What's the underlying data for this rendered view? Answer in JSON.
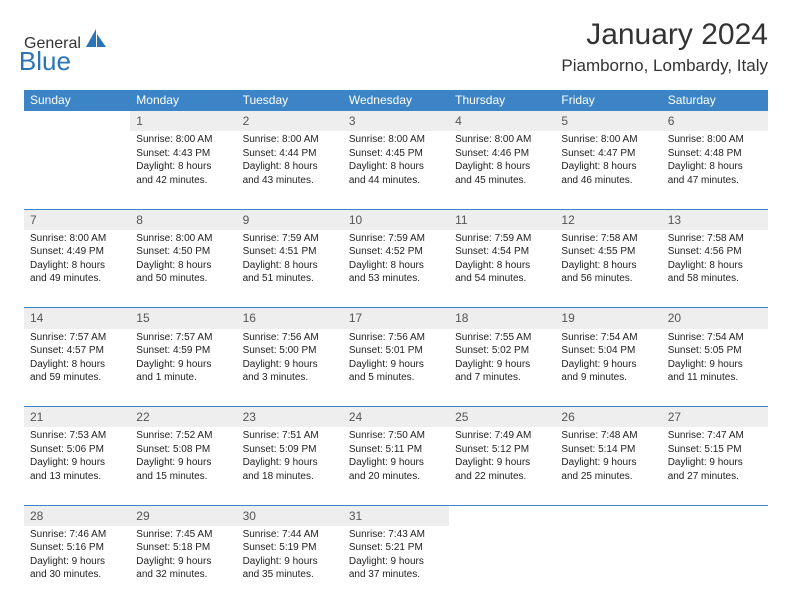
{
  "logo": {
    "general": "General",
    "blue": "Blue"
  },
  "title": "January 2024",
  "location": "Piamborno, Lombardy, Italy",
  "colors": {
    "header_bg": "#3c84c6",
    "header_text": "#ffffff",
    "daynum_bg": "#eeeeee",
    "row_border": "#3c84c6",
    "logo_gray": "#595959",
    "logo_blue": "#2b74b8",
    "page_bg": "#ffffff",
    "body_text": "#333333"
  },
  "fonts": {
    "title_pt": 30,
    "location_pt": 17,
    "th_pt": 12,
    "daynum_pt": 12,
    "cell_pt": 10
  },
  "weekdays": [
    "Sunday",
    "Monday",
    "Tuesday",
    "Wednesday",
    "Thursday",
    "Friday",
    "Saturday"
  ],
  "grid": {
    "rows": 6,
    "cols": 7,
    "first_weekday_index": 1,
    "days_in_month": 31
  },
  "days": {
    "1": {
      "sunrise": "8:00 AM",
      "sunset": "4:43 PM",
      "daylight": "8 hours and 42 minutes."
    },
    "2": {
      "sunrise": "8:00 AM",
      "sunset": "4:44 PM",
      "daylight": "8 hours and 43 minutes."
    },
    "3": {
      "sunrise": "8:00 AM",
      "sunset": "4:45 PM",
      "daylight": "8 hours and 44 minutes."
    },
    "4": {
      "sunrise": "8:00 AM",
      "sunset": "4:46 PM",
      "daylight": "8 hours and 45 minutes."
    },
    "5": {
      "sunrise": "8:00 AM",
      "sunset": "4:47 PM",
      "daylight": "8 hours and 46 minutes."
    },
    "6": {
      "sunrise": "8:00 AM",
      "sunset": "4:48 PM",
      "daylight": "8 hours and 47 minutes."
    },
    "7": {
      "sunrise": "8:00 AM",
      "sunset": "4:49 PM",
      "daylight": "8 hours and 49 minutes."
    },
    "8": {
      "sunrise": "8:00 AM",
      "sunset": "4:50 PM",
      "daylight": "8 hours and 50 minutes."
    },
    "9": {
      "sunrise": "7:59 AM",
      "sunset": "4:51 PM",
      "daylight": "8 hours and 51 minutes."
    },
    "10": {
      "sunrise": "7:59 AM",
      "sunset": "4:52 PM",
      "daylight": "8 hours and 53 minutes."
    },
    "11": {
      "sunrise": "7:59 AM",
      "sunset": "4:54 PM",
      "daylight": "8 hours and 54 minutes."
    },
    "12": {
      "sunrise": "7:58 AM",
      "sunset": "4:55 PM",
      "daylight": "8 hours and 56 minutes."
    },
    "13": {
      "sunrise": "7:58 AM",
      "sunset": "4:56 PM",
      "daylight": "8 hours and 58 minutes."
    },
    "14": {
      "sunrise": "7:57 AM",
      "sunset": "4:57 PM",
      "daylight": "8 hours and 59 minutes."
    },
    "15": {
      "sunrise": "7:57 AM",
      "sunset": "4:59 PM",
      "daylight": "9 hours and 1 minute."
    },
    "16": {
      "sunrise": "7:56 AM",
      "sunset": "5:00 PM",
      "daylight": "9 hours and 3 minutes."
    },
    "17": {
      "sunrise": "7:56 AM",
      "sunset": "5:01 PM",
      "daylight": "9 hours and 5 minutes."
    },
    "18": {
      "sunrise": "7:55 AM",
      "sunset": "5:02 PM",
      "daylight": "9 hours and 7 minutes."
    },
    "19": {
      "sunrise": "7:54 AM",
      "sunset": "5:04 PM",
      "daylight": "9 hours and 9 minutes."
    },
    "20": {
      "sunrise": "7:54 AM",
      "sunset": "5:05 PM",
      "daylight": "9 hours and 11 minutes."
    },
    "21": {
      "sunrise": "7:53 AM",
      "sunset": "5:06 PM",
      "daylight": "9 hours and 13 minutes."
    },
    "22": {
      "sunrise": "7:52 AM",
      "sunset": "5:08 PM",
      "daylight": "9 hours and 15 minutes."
    },
    "23": {
      "sunrise": "7:51 AM",
      "sunset": "5:09 PM",
      "daylight": "9 hours and 18 minutes."
    },
    "24": {
      "sunrise": "7:50 AM",
      "sunset": "5:11 PM",
      "daylight": "9 hours and 20 minutes."
    },
    "25": {
      "sunrise": "7:49 AM",
      "sunset": "5:12 PM",
      "daylight": "9 hours and 22 minutes."
    },
    "26": {
      "sunrise": "7:48 AM",
      "sunset": "5:14 PM",
      "daylight": "9 hours and 25 minutes."
    },
    "27": {
      "sunrise": "7:47 AM",
      "sunset": "5:15 PM",
      "daylight": "9 hours and 27 minutes."
    },
    "28": {
      "sunrise": "7:46 AM",
      "sunset": "5:16 PM",
      "daylight": "9 hours and 30 minutes."
    },
    "29": {
      "sunrise": "7:45 AM",
      "sunset": "5:18 PM",
      "daylight": "9 hours and 32 minutes."
    },
    "30": {
      "sunrise": "7:44 AM",
      "sunset": "5:19 PM",
      "daylight": "9 hours and 35 minutes."
    },
    "31": {
      "sunrise": "7:43 AM",
      "sunset": "5:21 PM",
      "daylight": "9 hours and 37 minutes."
    }
  },
  "labels": {
    "sunrise": "Sunrise:",
    "sunset": "Sunset:",
    "daylight": "Daylight:"
  }
}
